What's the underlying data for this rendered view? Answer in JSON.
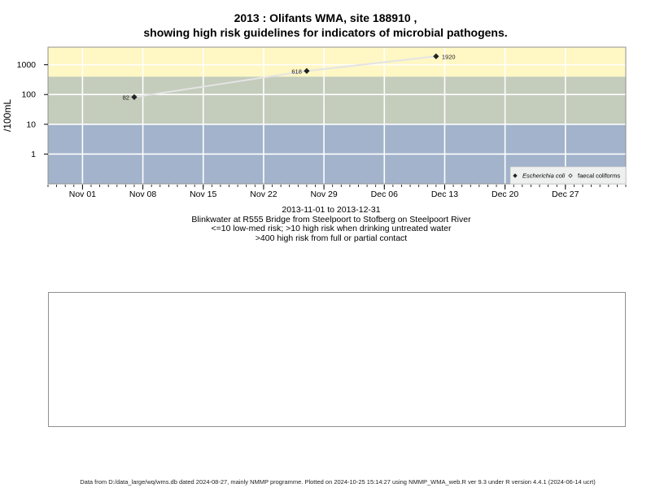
{
  "title_line1": "2013 : Olifants WMA, site 188910 ,",
  "title_line2": "showing high risk guidelines for indicators of microbial pathogens.",
  "caption": {
    "date_range": "2013-11-01 to 2013-12-31",
    "site": "Blinkwater at R555 Bridge from Steelpoort to Stofberg on Steelpoort River",
    "guideline_low": "<=10 low-med risk; >10 high risk when drinking untreated water",
    "guideline_high": ">400 high risk from full or partial contact"
  },
  "footer": "Data from D:/data_large/wq/wms.db dated 2024-08-27, mainly NMMP programme. Plotted on 2024-10-25 15:14:27 using NMMP_WMA_web.R ver 9.3 under R version 4.4.1 (2024-06-14 ucrt)",
  "colors": {
    "band_low": "#a2b3cb",
    "band_mid": "#c4ccbc",
    "band_high": "#fff7c4",
    "grid": "#ffffff",
    "line": "#e4e4e4",
    "marker": "#222222"
  },
  "chart_data": {
    "type": "line",
    "title": "2013 : Olifants WMA, site 188910 , showing high risk guidelines for indicators of microbial pathogens.",
    "xlabel": "",
    "ylabel": "/100mL",
    "yscale": "log",
    "x_range": [
      "2013-10-28",
      "2014-01-03"
    ],
    "y_range": [
      0.1,
      3900
    ],
    "x_ticks": [
      {
        "date": "2013-11-01",
        "label": "Nov 01"
      },
      {
        "date": "2013-11-08",
        "label": "Nov 08"
      },
      {
        "date": "2013-11-15",
        "label": "Nov 15"
      },
      {
        "date": "2013-11-22",
        "label": "Nov 22"
      },
      {
        "date": "2013-11-29",
        "label": "Nov 29"
      },
      {
        "date": "2013-12-06",
        "label": "Dec 06"
      },
      {
        "date": "2013-12-13",
        "label": "Dec 13"
      },
      {
        "date": "2013-12-20",
        "label": "Dec 20"
      },
      {
        "date": "2013-12-27",
        "label": "Dec 27"
      }
    ],
    "y_ticks": [
      {
        "value": 1,
        "label": "1"
      },
      {
        "value": 10,
        "label": "10"
      },
      {
        "value": 100,
        "label": "100"
      },
      {
        "value": 1000,
        "label": "1000"
      }
    ],
    "bands": [
      {
        "from": 0.1,
        "to": 10,
        "color": "#a2b3cb"
      },
      {
        "from": 10,
        "to": 400,
        "color": "#c4ccbc"
      },
      {
        "from": 400,
        "to": 3900,
        "color": "#fff7c4"
      }
    ],
    "grid": true,
    "legend_position": "bottom-right",
    "legend": [
      {
        "name": "Escherichia coli",
        "marker": "filled-diamond",
        "italic": true
      },
      {
        "name": "faecal coliforms",
        "marker": "open-diamond",
        "italic": false
      }
    ],
    "series": [
      {
        "name": "Escherichia coli",
        "marker": "filled-diamond",
        "points": [
          {
            "date": "2013-11-07",
            "value": 82,
            "label": "82"
          },
          {
            "date": "2013-11-27",
            "value": 618,
            "label": "618"
          },
          {
            "date": "2013-12-12",
            "value": 1920,
            "label": "1920"
          }
        ]
      }
    ]
  }
}
